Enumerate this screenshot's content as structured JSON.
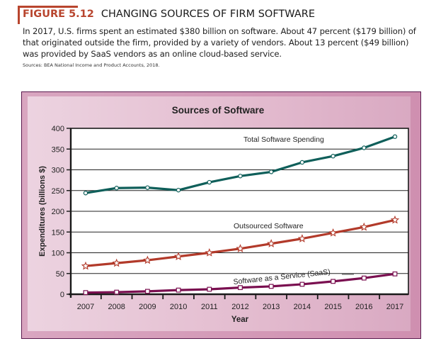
{
  "figure": {
    "number": "FIGURE 5.12",
    "title": "CHANGING SOURCES OF FIRM SOFTWARE",
    "caption": "In 2017, U.S. firms spent an estimated $380 billion on software. About 47 percent ($179 billion) of that originated outside the firm, provided by a variety of vendors. About 13 percent ($49 billion) was provided by SaaS vendors as an online cloud-based service.",
    "source": "Sources: BEA National Income and Product Accounts, 2018.",
    "accent_color": "#b8452e"
  },
  "chart_data": {
    "type": "line",
    "title": "Sources of Software",
    "xlabel": "Year",
    "ylabel": "Expenditures (billions $)",
    "x": [
      "2007",
      "2008",
      "2009",
      "2010",
      "2011",
      "2012",
      "2013",
      "2014",
      "2015",
      "2016",
      "2017"
    ],
    "ylim": [
      0,
      400
    ],
    "yticks": [
      "0",
      "50",
      "100",
      "150",
      "200",
      "250",
      "300",
      "350",
      "400"
    ],
    "grid": true,
    "series": [
      {
        "name": "Total Software Spending",
        "color": "#0f5f5a",
        "marker": "circle",
        "values": [
          244,
          256,
          257,
          251,
          270,
          285,
          295,
          318,
          333,
          353,
          380
        ]
      },
      {
        "name": "Outsourced Software",
        "color": "#b23a2a",
        "marker": "star",
        "values": [
          68,
          75,
          82,
          91,
          100,
          110,
          122,
          134,
          148,
          162,
          179
        ]
      },
      {
        "name": "Software as a Service (SaaS)",
        "color": "#7a0f50",
        "marker": "square",
        "values": [
          4,
          5,
          7,
          10,
          12,
          16,
          19,
          24,
          31,
          39,
          49
        ]
      }
    ]
  }
}
